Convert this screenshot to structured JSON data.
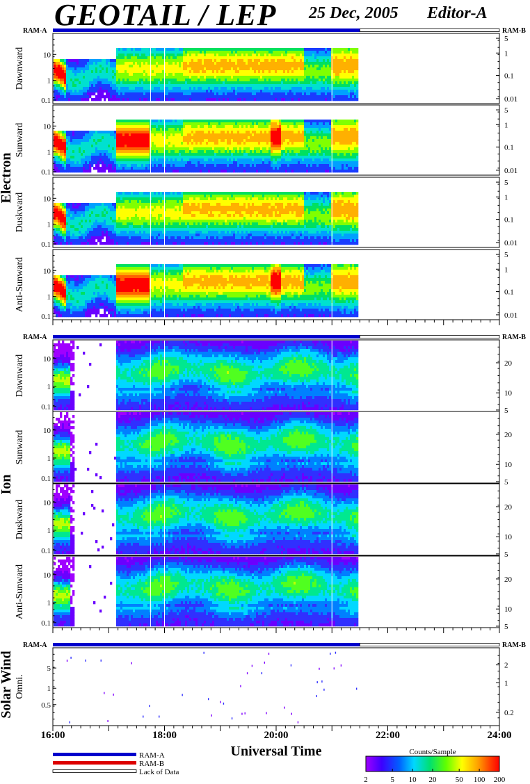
{
  "header": {
    "title": "GEOTAIL / LEP",
    "date": "25 Dec, 2005",
    "editor": "Editor-A"
  },
  "colors": {
    "ram_a": "#0000cc",
    "ram_b": "#dd0000",
    "no_data": "#ffffff",
    "axis": "#000000"
  },
  "chart_data": [
    {
      "type": "heatmap",
      "group": "Electron",
      "ram_labels": {
        "left": "RAM-A",
        "right": "RAM-B"
      },
      "mode_bar": [
        {
          "mode": "RAM-A",
          "from": "16:00",
          "to": "21:30"
        },
        {
          "mode": "Lack of Data",
          "from": "21:30",
          "to": "24:00"
        }
      ],
      "data_range": [
        "16:00",
        "21:30"
      ],
      "x_ticks": [
        "16:00",
        "18:00",
        "20:00",
        "22:00",
        "24:00"
      ],
      "panels": [
        {
          "name": "Dawnward",
          "left_ticks": [
            "10",
            "1",
            "0.1"
          ],
          "right_ticks": [
            "5",
            "1",
            "0.1",
            "0.01"
          ]
        },
        {
          "name": "Sunward",
          "left_ticks": [
            "10",
            "1",
            "0.1"
          ],
          "right_ticks": [
            "5",
            "1",
            "0.1",
            "0.01"
          ]
        },
        {
          "name": "Duskward",
          "left_ticks": [
            "10",
            "1",
            "0.1"
          ],
          "right_ticks": [
            "5",
            "1",
            "0.1",
            "0.01"
          ]
        },
        {
          "name": "Anti-Sunward",
          "left_ticks": [
            "10",
            "1",
            "0.1"
          ],
          "right_ticks": [
            "5",
            "1",
            "0.1",
            "0.01"
          ]
        }
      ]
    },
    {
      "type": "heatmap",
      "group": "Ion",
      "ram_labels": {
        "left": "RAM-A",
        "right": "RAM-B"
      },
      "mode_bar": [
        {
          "mode": "RAM-A",
          "from": "16:00",
          "to": "21:30"
        },
        {
          "mode": "Lack of Data",
          "from": "21:30",
          "to": "24:00"
        }
      ],
      "data_range": [
        "16:00",
        "21:30"
      ],
      "x_ticks": [
        "16:00",
        "18:00",
        "20:00",
        "22:00",
        "24:00"
      ],
      "panels": [
        {
          "name": "Dawnward",
          "left_ticks": [
            "10",
            "1",
            "0.1"
          ],
          "right_ticks": [
            "20",
            "10",
            "5"
          ]
        },
        {
          "name": "Sunward",
          "left_ticks": [
            "10",
            "1",
            "0.1"
          ],
          "right_ticks": [
            "20",
            "10",
            "5"
          ]
        },
        {
          "name": "Duskward",
          "left_ticks": [
            "10",
            "1",
            "0.1"
          ],
          "right_ticks": [
            "20",
            "10",
            "5"
          ]
        },
        {
          "name": "Anti-Sunward",
          "left_ticks": [
            "10",
            "1",
            "0.1"
          ],
          "right_ticks": [
            "20",
            "10",
            "5"
          ]
        }
      ]
    },
    {
      "type": "scatter",
      "group": "Solar Wind",
      "ram_labels": {
        "left": "RAM-A",
        "right": "RAM-B"
      },
      "mode_bar": [
        {
          "mode": "RAM-A",
          "from": "16:00",
          "to": "21:30"
        },
        {
          "mode": "Lack of Data",
          "from": "21:30",
          "to": "24:00"
        }
      ],
      "panels": [
        {
          "name": "Omni.",
          "left_ticks": [
            "5",
            "1",
            "0.5"
          ],
          "right_ticks": [
            "2",
            "1",
            "0.2"
          ]
        }
      ]
    }
  ],
  "x_axis": {
    "label": "Universal Time",
    "ticks": [
      "16:00",
      "18:00",
      "20:00",
      "22:00",
      "24:00"
    ]
  },
  "legend": {
    "items": [
      "RAM-A",
      "RAM-B",
      "Lack of Data"
    ]
  },
  "colorbar": {
    "title": "Counts/Sample",
    "ticks": [
      "2",
      "5",
      "10",
      "20",
      "50",
      "100",
      "200"
    ]
  }
}
